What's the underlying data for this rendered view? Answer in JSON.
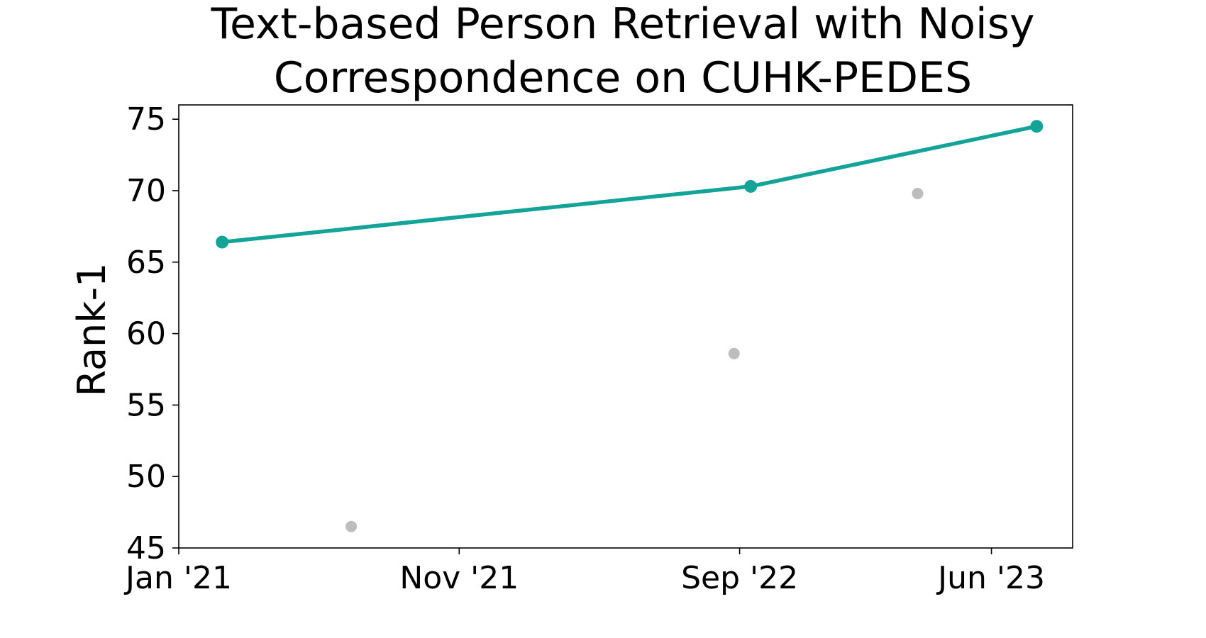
{
  "chart_data": {
    "type": "line",
    "title_lines": [
      "Text-based Person Retrieval with Noisy",
      "Correspondence on CUHK-PEDES"
    ],
    "xlabel": "",
    "ylabel": "Rank-1",
    "ylim": [
      45,
      76
    ],
    "yticks": [
      45,
      50,
      55,
      60,
      65,
      70,
      75
    ],
    "xlim": [
      "2021-01-01",
      "2023-08-28"
    ],
    "xticks": [
      {
        "date": "2021-01-01",
        "label": "Jan '21"
      },
      {
        "date": "2021-11-01",
        "label": "Nov '21"
      },
      {
        "date": "2022-09-01",
        "label": "Sep '22"
      },
      {
        "date": "2023-06-01",
        "label": "Jun '23"
      }
    ],
    "grid": false,
    "series": [
      {
        "color": "#13a398",
        "style": "line-with-markers",
        "points": [
          {
            "date": "2021-02-17",
            "value": 66.4
          },
          {
            "date": "2022-09-13",
            "value": 70.3
          },
          {
            "date": "2023-07-20",
            "value": 74.5
          }
        ]
      },
      {
        "color": "#bdbdbd",
        "style": "markers-only",
        "points": [
          {
            "date": "2021-07-07",
            "value": 46.5
          },
          {
            "date": "2022-08-26",
            "value": 58.6
          },
          {
            "date": "2023-03-13",
            "value": 69.8
          }
        ]
      }
    ]
  }
}
